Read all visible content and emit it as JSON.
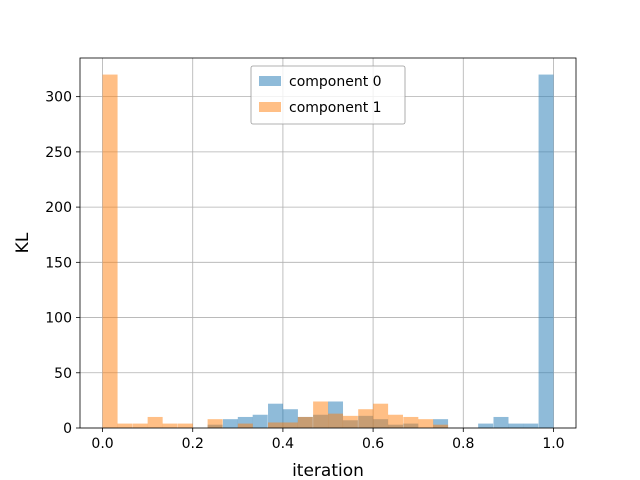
{
  "chart_data": {
    "type": "bar",
    "xlabel": "iteration",
    "ylabel": "KL",
    "xlim": [
      -0.05,
      1.05
    ],
    "ylim": [
      0,
      335
    ],
    "grid": true,
    "legend_position": "top-center",
    "x_ticks": [
      0.0,
      0.2,
      0.4,
      0.6,
      0.8,
      1.0
    ],
    "x_tick_labels": [
      "0.0",
      "0.2",
      "0.4",
      "0.6",
      "0.8",
      "1.0"
    ],
    "y_ticks": [
      0,
      50,
      100,
      150,
      200,
      250,
      300
    ],
    "y_tick_labels": [
      "0",
      "50",
      "100",
      "150",
      "200",
      "250",
      "300"
    ],
    "bin_width": 0.0333,
    "series": [
      {
        "name": "component 0",
        "color": "#1f77b4",
        "bins": [
          {
            "x0": 0.233,
            "count": 3
          },
          {
            "x0": 0.267,
            "count": 8
          },
          {
            "x0": 0.3,
            "count": 10
          },
          {
            "x0": 0.333,
            "count": 12
          },
          {
            "x0": 0.367,
            "count": 22
          },
          {
            "x0": 0.4,
            "count": 17
          },
          {
            "x0": 0.433,
            "count": 10
          },
          {
            "x0": 0.467,
            "count": 12
          },
          {
            "x0": 0.5,
            "count": 24
          },
          {
            "x0": 0.533,
            "count": 7
          },
          {
            "x0": 0.567,
            "count": 11
          },
          {
            "x0": 0.6,
            "count": 8
          },
          {
            "x0": 0.633,
            "count": 3
          },
          {
            "x0": 0.667,
            "count": 4
          },
          {
            "x0": 0.733,
            "count": 8
          },
          {
            "x0": 0.833,
            "count": 4
          },
          {
            "x0": 0.867,
            "count": 10
          },
          {
            "x0": 0.9,
            "count": 4
          },
          {
            "x0": 0.933,
            "count": 4
          },
          {
            "x0": 0.967,
            "count": 320
          }
        ]
      },
      {
        "name": "component 1",
        "color": "#ff7f0e",
        "bins": [
          {
            "x0": 0.0,
            "count": 320
          },
          {
            "x0": 0.033,
            "count": 4
          },
          {
            "x0": 0.067,
            "count": 4
          },
          {
            "x0": 0.1,
            "count": 10
          },
          {
            "x0": 0.133,
            "count": 4
          },
          {
            "x0": 0.167,
            "count": 4
          },
          {
            "x0": 0.233,
            "count": 8
          },
          {
            "x0": 0.3,
            "count": 4
          },
          {
            "x0": 0.367,
            "count": 5
          },
          {
            "x0": 0.4,
            "count": 5
          },
          {
            "x0": 0.433,
            "count": 10
          },
          {
            "x0": 0.467,
            "count": 24
          },
          {
            "x0": 0.5,
            "count": 13
          },
          {
            "x0": 0.533,
            "count": 11
          },
          {
            "x0": 0.567,
            "count": 17
          },
          {
            "x0": 0.6,
            "count": 22
          },
          {
            "x0": 0.633,
            "count": 12
          },
          {
            "x0": 0.667,
            "count": 10
          },
          {
            "x0": 0.7,
            "count": 8
          },
          {
            "x0": 0.733,
            "count": 3
          }
        ]
      }
    ]
  }
}
